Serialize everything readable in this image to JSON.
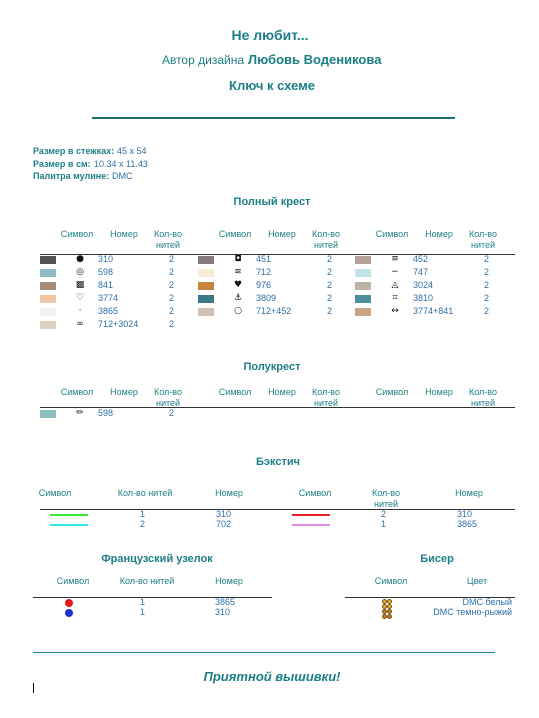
{
  "header": {
    "title": "Не любит...",
    "designer_label": "Автор дизайна",
    "designer": "Любовь Воденикова",
    "subtitle": "Ключ к схеме"
  },
  "info": [
    {
      "label": "Размер в стежках:",
      "value": "45 x 54"
    },
    {
      "label": "Размер в см:",
      "value": "10.34 x 11.43"
    },
    {
      "label": "Палитра мулине:",
      "value": "DMC"
    }
  ],
  "full_cross": {
    "title": "Полный крест",
    "headers": [
      "Символ",
      "Номер",
      "Кол-во нитей"
    ],
    "groups": [
      [
        {
          "symbol": "●",
          "color": "#555255",
          "number": "310",
          "strands": 2
        },
        {
          "symbol": "◎",
          "color": "#8dbfc2",
          "number": "598",
          "strands": 2
        },
        {
          "symbol": "▩",
          "color": "#a98c78",
          "number": "841",
          "strands": 2
        },
        {
          "symbol": "♡",
          "color": "#ebc6a9",
          "number": "3774",
          "strands": 2
        },
        {
          "symbol": "·",
          "color": "#f3f1ec",
          "number": "3865",
          "strands": 2
        },
        {
          "symbol": "∞",
          "color": "#d8d0c0",
          "number": "712+3024",
          "strands": 2
        }
      ],
      [
        {
          "symbol": "◘",
          "color": "#847a7a",
          "number": "451",
          "strands": 2
        },
        {
          "symbol": "≋",
          "color": "#f6ecd9",
          "number": "712",
          "strands": 2
        },
        {
          "symbol": "♥",
          "color": "#c9833a",
          "number": "976",
          "strands": 2
        },
        {
          "symbol": "⚓",
          "color": "#3b7a8b",
          "number": "3809",
          "strands": 2
        },
        {
          "symbol": "○",
          "color": "#cfc2b8",
          "number": "712+452",
          "strands": 2
        }
      ],
      [
        {
          "symbol": "≡",
          "color": "#b5a09b",
          "number": "452",
          "strands": 2
        },
        {
          "symbol": "−",
          "color": "#bfe3e6",
          "number": "747",
          "strands": 2
        },
        {
          "symbol": "◬",
          "color": "#bdb3a5",
          "number": "3024",
          "strands": 2
        },
        {
          "symbol": "⌗",
          "color": "#4a8f9b",
          "number": "3810",
          "strands": 2
        },
        {
          "symbol": "↔",
          "color": "#c9a288",
          "number": "3774+841",
          "strands": 2
        }
      ]
    ]
  },
  "half_cross": {
    "title": "Полукрест",
    "headers": [
      "Символ",
      "Номер",
      "Кол-во нитей"
    ],
    "groups": [
      [
        {
          "symbol": "✏",
          "color": "#8dbfc2",
          "number": "598",
          "strands": 2
        }
      ],
      [],
      []
    ]
  },
  "backstitch": {
    "title": "Бэкстич",
    "headers": [
      "Символ",
      "Кол-во нитей",
      "Номер"
    ],
    "groups": [
      [
        {
          "color": "#33ee33",
          "strands": 1,
          "number": "310"
        },
        {
          "color": "#33e6ee",
          "strands": 2,
          "number": "702"
        }
      ],
      [
        {
          "color": "#e8202a",
          "strands": 2,
          "number": "310"
        },
        {
          "color": "#e98be0",
          "strands": 1,
          "number": "3865"
        }
      ]
    ]
  },
  "french_knot": {
    "title": "Французский узелок",
    "headers": [
      "Символ",
      "Кол-во нитей",
      "Номер"
    ],
    "rows": [
      {
        "color": "#e01b1b",
        "strands": 1,
        "number": "3865"
      },
      {
        "color": "#1c2fd0",
        "strands": 1,
        "number": "310"
      }
    ]
  },
  "beads": {
    "title": "Бисер",
    "headers": [
      "Символ",
      "Цвет"
    ],
    "rows": [
      {
        "color": "#e0b030",
        "name": "DMC белый"
      },
      {
        "color": "#c08020",
        "name": "DMC темно-рыжий"
      }
    ]
  },
  "footer": "Приятной вышивки!"
}
